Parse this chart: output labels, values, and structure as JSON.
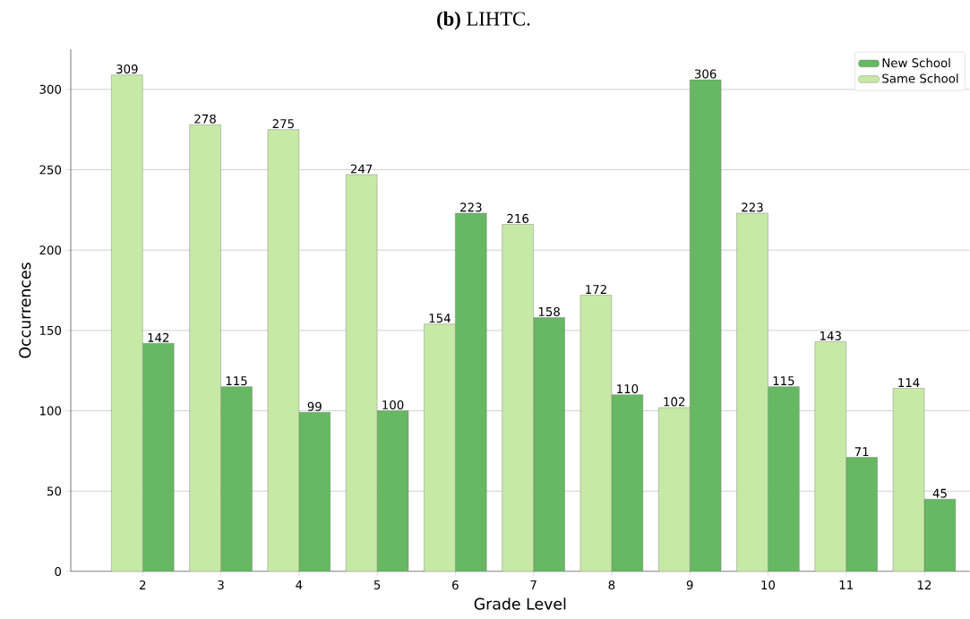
{
  "chart_data": {
    "type": "bar",
    "title": "**(b)** LIHTC.",
    "xlabel": "Grade Level",
    "ylabel": "Occurrences",
    "categories": [
      "2",
      "3",
      "4",
      "5",
      "6",
      "7",
      "8",
      "9",
      "10",
      "11",
      "12"
    ],
    "series": [
      {
        "name": "New School",
        "color": "#66b862",
        "values": [
          142,
          115,
          99,
          100,
          223,
          158,
          110,
          306,
          115,
          71,
          45
        ]
      },
      {
        "name": "Same School",
        "color": "#c7e9a6",
        "values": [
          309,
          278,
          275,
          247,
          154,
          216,
          172,
          102,
          223,
          143,
          114
        ]
      }
    ],
    "ylim": [
      0,
      325
    ],
    "yticks": [
      0,
      50,
      100,
      150,
      200,
      250,
      300
    ],
    "grid": "y",
    "legend": "top right",
    "data_labels": true
  }
}
